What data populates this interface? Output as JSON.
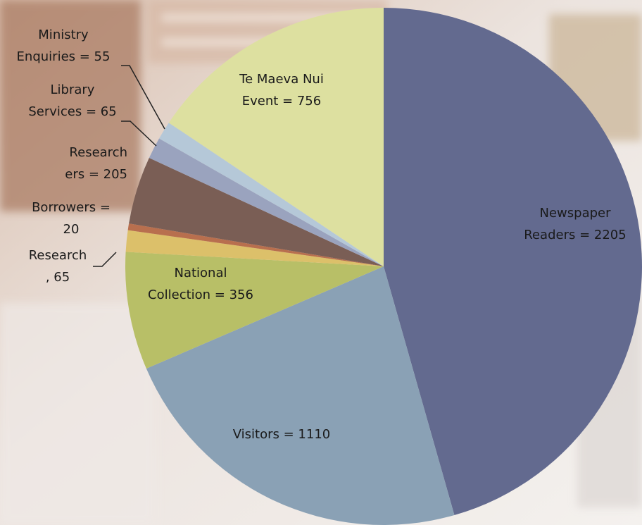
{
  "chart_data": {
    "type": "pie",
    "values": [
      2205,
      1110,
      356,
      65,
      20,
      205,
      65,
      55,
      756
    ],
    "value_labels": [
      "Newspaper\nReaders = 2205",
      "Visitors = 1110",
      "National\nCollection = 356",
      "Research\n, 65",
      "Borrowers =\n20",
      "Research\ners = 205",
      "Library\nServices = 65",
      "Ministry\nEnquiries = 55",
      "Te Maeva Nui\nEvent = 756"
    ],
    "colors": [
      "#636a8f",
      "#8aa1b5",
      "#b8bf67",
      "#dcc06a",
      "#b86f4e",
      "#7a5e55",
      "#9aa3be",
      "#b5c8d8",
      "#dde0a0"
    ]
  }
}
